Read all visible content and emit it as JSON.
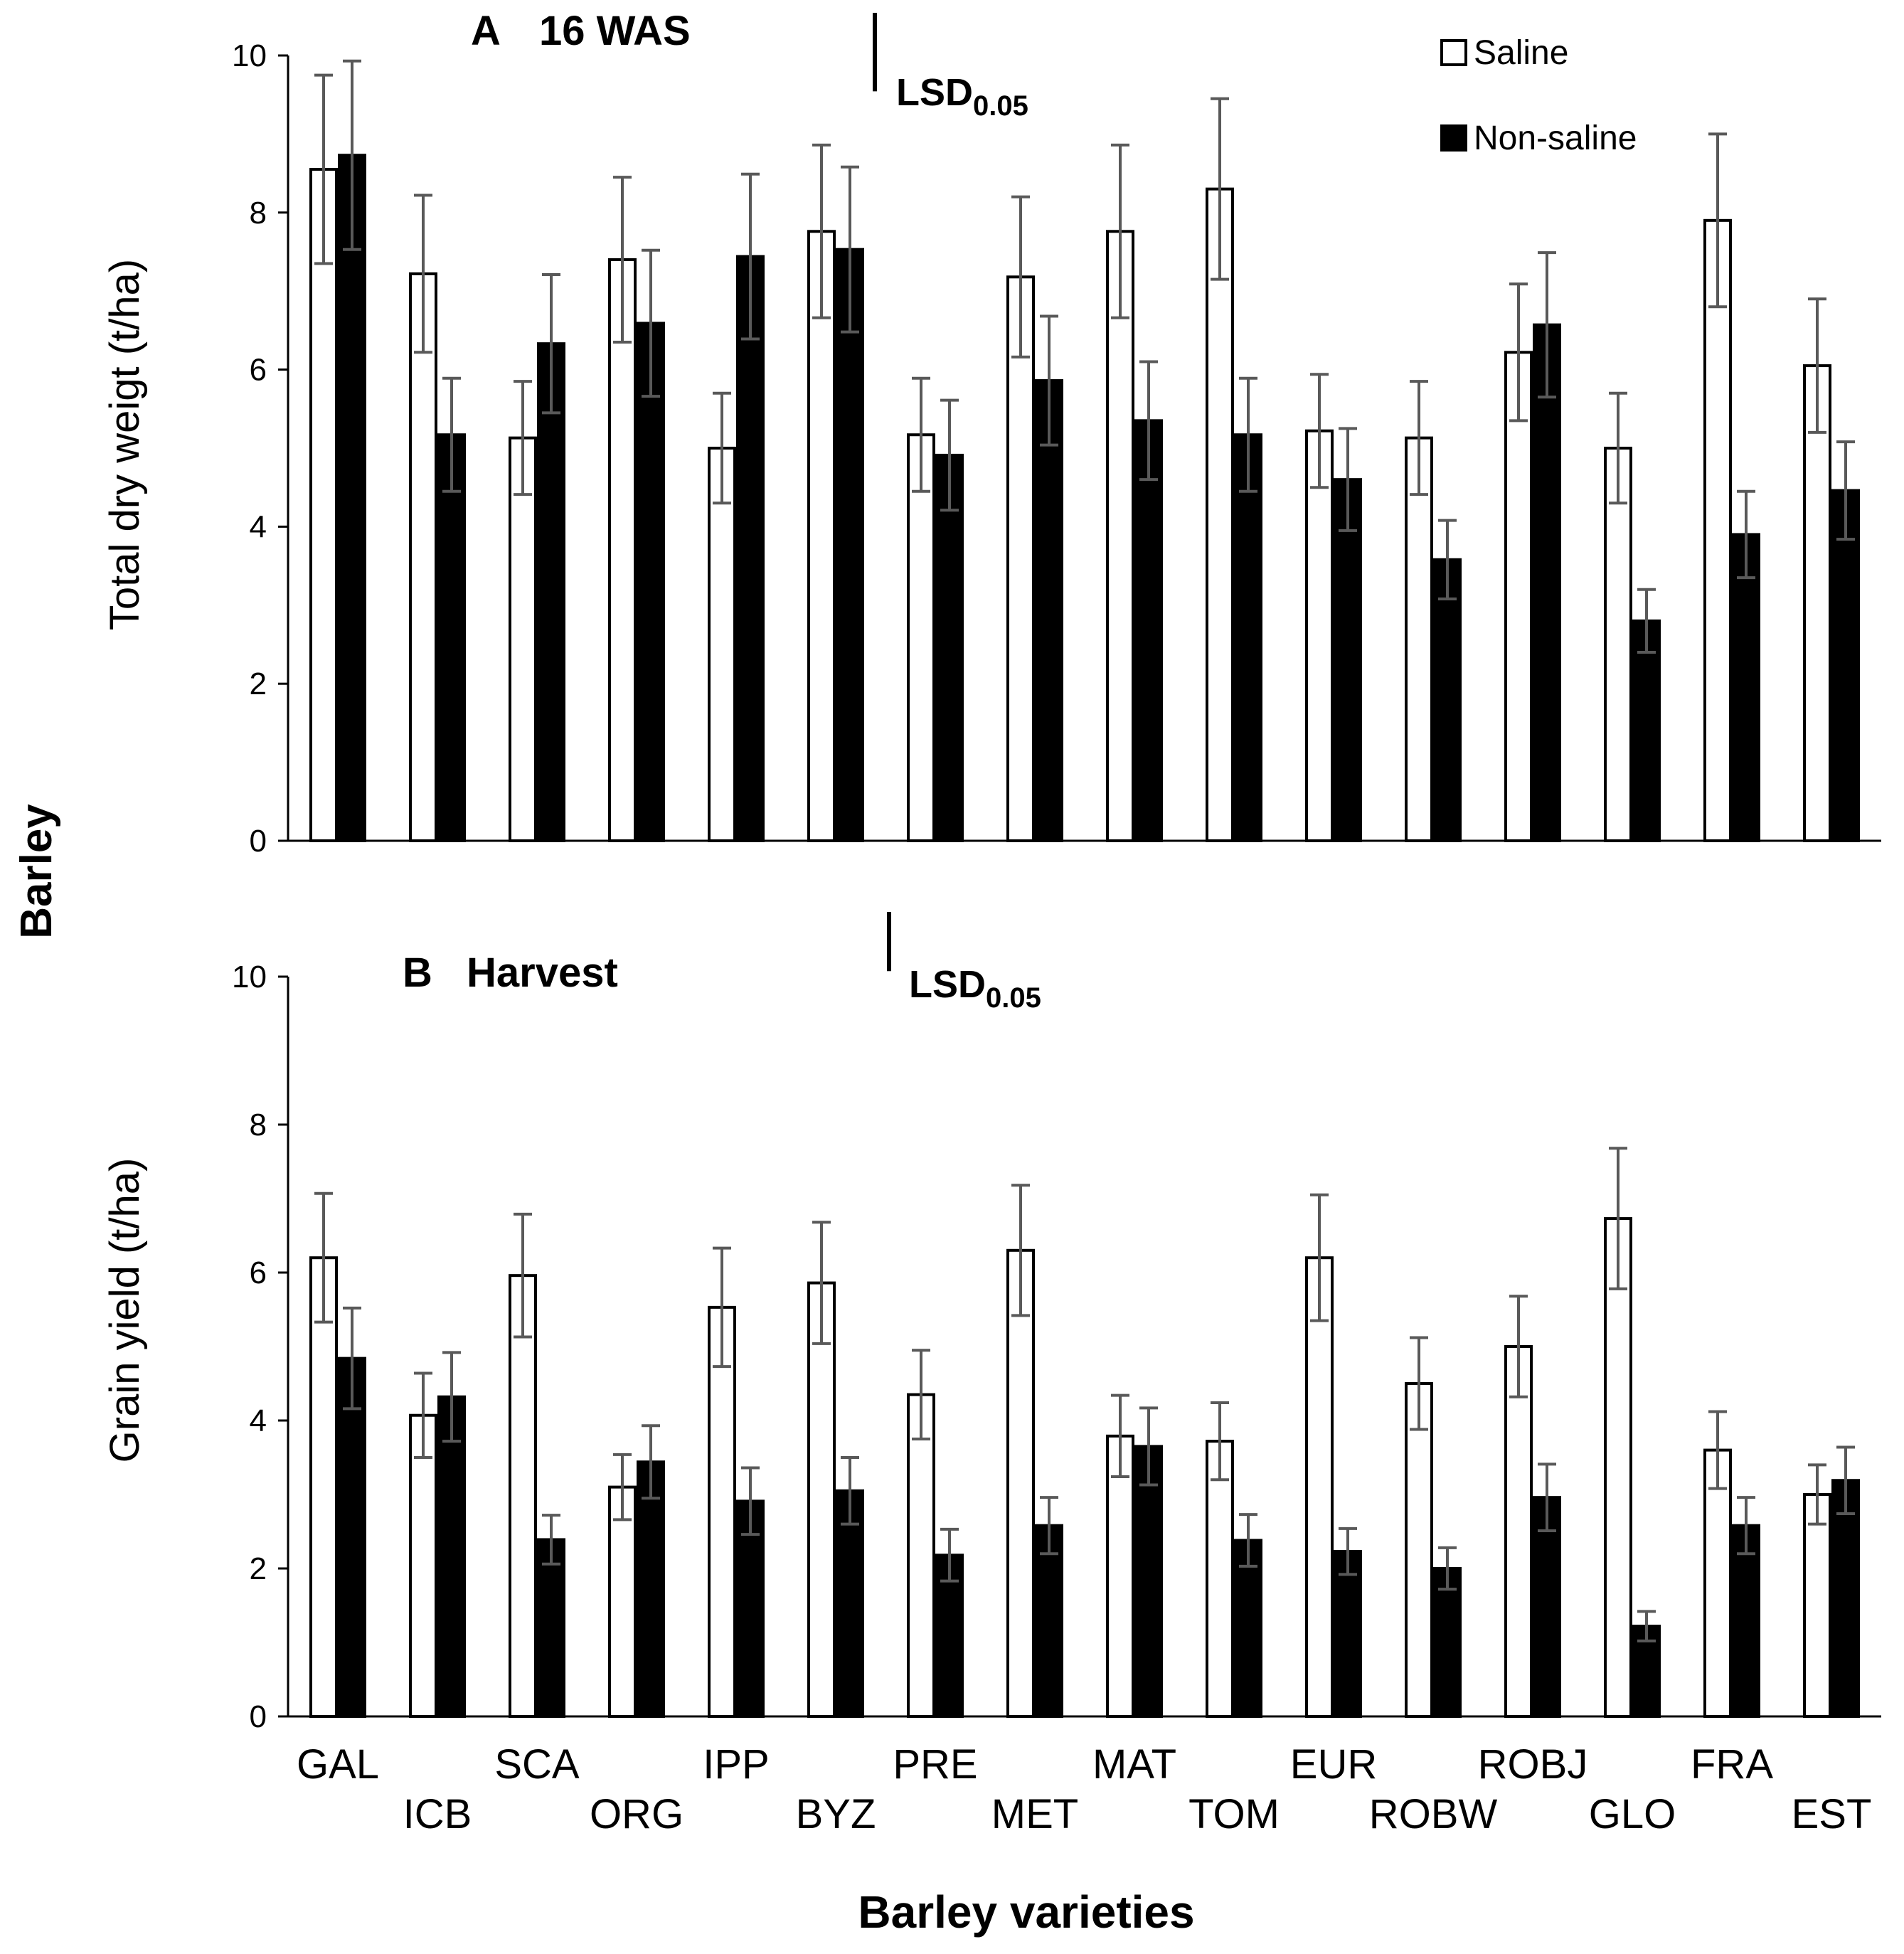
{
  "figure": {
    "side_label": "Barley",
    "x_axis_title": "Barley varieties",
    "lsd_label": "LSD",
    "lsd_subscript": "0.05"
  },
  "legend": {
    "saline": "Saline",
    "non_saline": "Non-saline"
  },
  "colors": {
    "saline": "#ffffff",
    "non_saline": "#000000",
    "error_bar": "#595959",
    "axis": "#000000"
  },
  "chart_data": [
    {
      "type": "bar",
      "panel_letter": "A",
      "title": "16 WAS",
      "ylabel": "Total dry weigt (t/ha)",
      "ylim": [
        0,
        10
      ],
      "yticks": [
        0,
        2,
        4,
        6,
        8,
        10
      ],
      "lsd": 1.0,
      "categories": [
        "GAL",
        "ICB",
        "SCA",
        "ORG",
        "IPP",
        "BYZ",
        "PRE",
        "MET",
        "MAT",
        "TOM",
        "EUR",
        "ROBW",
        "ROBJ",
        "GLO",
        "FRA",
        "EST"
      ],
      "series": [
        {
          "name": "Saline",
          "values": [
            8.55,
            7.22,
            5.13,
            7.4,
            5.0,
            7.76,
            5.17,
            7.18,
            7.76,
            8.3,
            5.22,
            5.13,
            6.22,
            5.0,
            7.9,
            6.05
          ],
          "errors": [
            1.2,
            1.0,
            0.72,
            1.05,
            0.7,
            1.1,
            0.72,
            1.02,
            1.1,
            1.15,
            0.72,
            0.72,
            0.87,
            0.7,
            1.1,
            0.85
          ]
        },
        {
          "name": "Non-saline",
          "values": [
            8.73,
            5.17,
            6.33,
            6.59,
            7.44,
            7.53,
            4.91,
            5.86,
            5.35,
            5.17,
            4.6,
            3.58,
            6.57,
            2.8,
            3.9,
            4.46
          ],
          "errors": [
            1.2,
            0.72,
            0.88,
            0.93,
            1.05,
            1.05,
            0.7,
            0.82,
            0.75,
            0.72,
            0.65,
            0.5,
            0.92,
            0.4,
            0.55,
            0.62
          ]
        }
      ]
    },
    {
      "type": "bar",
      "panel_letter": "B",
      "title": "Harvest",
      "ylabel": "Grain yield (t/ha)",
      "ylim": [
        0,
        10
      ],
      "yticks": [
        0,
        2,
        4,
        6,
        8,
        10
      ],
      "lsd": 0.8,
      "categories": [
        "GAL",
        "ICB",
        "SCA",
        "ORG",
        "IPP",
        "BYZ",
        "PRE",
        "MET",
        "MAT",
        "TOM",
        "EUR",
        "ROBW",
        "ROBJ",
        "GLO",
        "FRA",
        "EST"
      ],
      "series": [
        {
          "name": "Saline",
          "values": [
            6.2,
            4.07,
            5.96,
            3.1,
            5.53,
            5.86,
            4.35,
            6.3,
            3.79,
            3.72,
            6.2,
            4.5,
            5.0,
            6.73,
            3.6,
            3.0
          ],
          "errors": [
            0.87,
            0.57,
            0.83,
            0.44,
            0.8,
            0.82,
            0.6,
            0.88,
            0.55,
            0.52,
            0.85,
            0.62,
            0.68,
            0.95,
            0.52,
            0.4
          ]
        },
        {
          "name": "Non-saline",
          "values": [
            4.84,
            4.32,
            2.39,
            3.44,
            2.91,
            3.05,
            2.18,
            2.58,
            3.65,
            2.38,
            2.23,
            2.0,
            2.96,
            1.22,
            2.58,
            3.19
          ],
          "errors": [
            0.68,
            0.6,
            0.33,
            0.49,
            0.45,
            0.45,
            0.35,
            0.38,
            0.52,
            0.35,
            0.31,
            0.28,
            0.45,
            0.2,
            0.38,
            0.45
          ]
        }
      ]
    }
  ]
}
